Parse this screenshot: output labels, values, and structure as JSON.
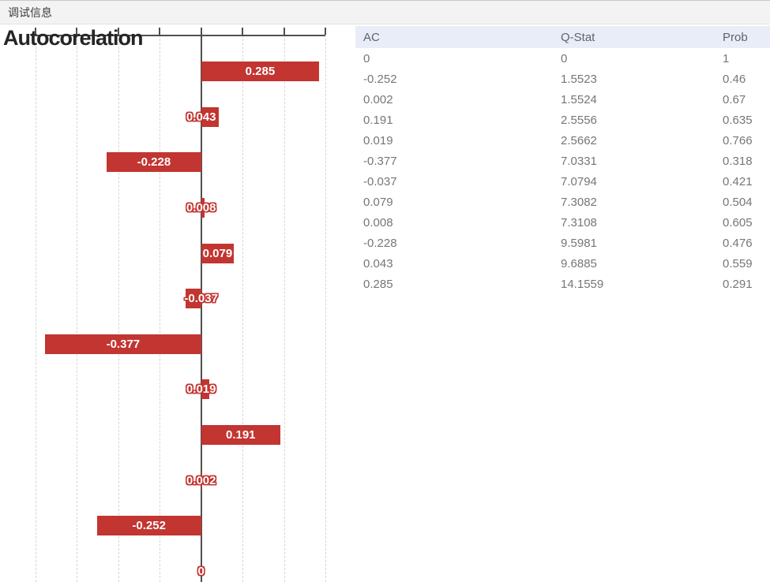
{
  "titlebar": {
    "label": "调试信息"
  },
  "colors": {
    "bar_red": "#c23531",
    "table_header_bg": "#e8edf8"
  },
  "chart_data": {
    "type": "bar",
    "orientation": "horizontal",
    "title": "Autocorelation",
    "values": [
      0.285,
      0.043,
      -0.228,
      0.008,
      0.079,
      -0.037,
      -0.377,
      0.019,
      0.191,
      0.002,
      -0.252,
      0
    ],
    "labels": [
      "0.285",
      "0.043",
      "-0.228",
      "0.008",
      "0.079",
      "-0.037",
      "-0.377",
      "0.019",
      "0.191",
      "0.002",
      "-0.252",
      "0"
    ],
    "xlim": [
      -0.4,
      0.3
    ],
    "ticks": [
      -0.4,
      -0.3,
      -0.2,
      -0.1,
      0,
      0.1,
      0.2,
      0.3
    ],
    "grid": true,
    "legend": false,
    "bar_color": "#c23531",
    "inside_label_threshold": 0.07
  },
  "table": {
    "columns": [
      "AC",
      "Q-Stat",
      "Prob"
    ],
    "rows": [
      [
        "0",
        "0",
        "1"
      ],
      [
        "-0.252",
        "1.5523",
        "0.46"
      ],
      [
        "0.002",
        "1.5524",
        "0.67"
      ],
      [
        "0.191",
        "2.5556",
        "0.635"
      ],
      [
        "0.019",
        "2.5662",
        "0.766"
      ],
      [
        "-0.377",
        "7.0331",
        "0.318"
      ],
      [
        "-0.037",
        "7.0794",
        "0.421"
      ],
      [
        "0.079",
        "7.3082",
        "0.504"
      ],
      [
        "0.008",
        "7.3108",
        "0.605"
      ],
      [
        "-0.228",
        "9.5981",
        "0.476"
      ],
      [
        "0.043",
        "9.6885",
        "0.559"
      ],
      [
        "0.285",
        "14.1559",
        "0.291"
      ]
    ]
  }
}
